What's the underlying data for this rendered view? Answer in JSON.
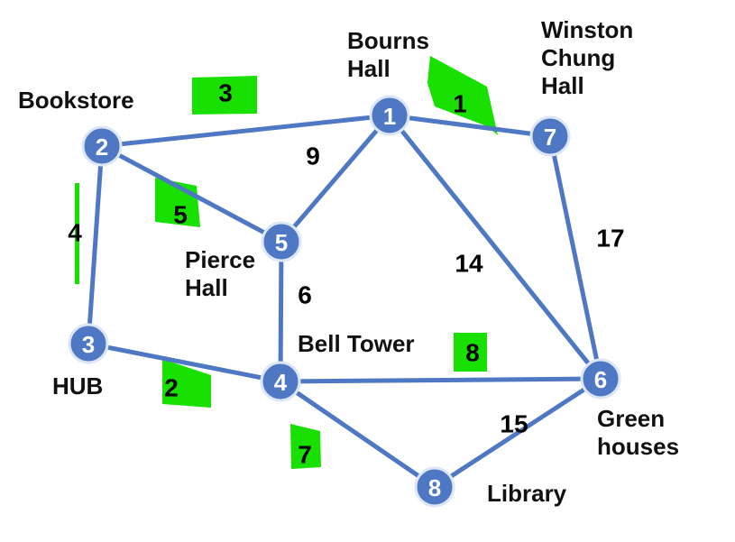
{
  "colors": {
    "edge": "#4f78c4",
    "node": "#4f78c4",
    "highlight": "#18e000",
    "text": "#111111"
  },
  "nodes": [
    {
      "id": "1",
      "place": [
        "Bourns",
        "Hall"
      ]
    },
    {
      "id": "2",
      "place": [
        "Bookstore"
      ]
    },
    {
      "id": "3",
      "place": [
        "HUB"
      ]
    },
    {
      "id": "4",
      "place": [
        "Bell Tower"
      ]
    },
    {
      "id": "5",
      "place": [
        "Pierce",
        "Hall"
      ]
    },
    {
      "id": "6",
      "place": [
        "Green",
        "houses"
      ]
    },
    {
      "id": "7",
      "place": [
        "Winston",
        "Chung",
        "Hall"
      ]
    },
    {
      "id": "8",
      "place": [
        "Library"
      ]
    }
  ],
  "edges": [
    {
      "from": "2",
      "to": "1",
      "weight": "3",
      "highlighted": true
    },
    {
      "from": "1",
      "to": "7",
      "weight": "1",
      "highlighted": true
    },
    {
      "from": "1",
      "to": "5",
      "weight": "9",
      "highlighted": false
    },
    {
      "from": "1",
      "to": "6",
      "weight": "14",
      "highlighted": false
    },
    {
      "from": "7",
      "to": "6",
      "weight": "17",
      "highlighted": false
    },
    {
      "from": "2",
      "to": "5",
      "weight": "5",
      "highlighted": true
    },
    {
      "from": "2",
      "to": "3",
      "weight": "4",
      "highlighted": true
    },
    {
      "from": "5",
      "to": "4",
      "weight": "6",
      "highlighted": false
    },
    {
      "from": "3",
      "to": "4",
      "weight": "2",
      "highlighted": true
    },
    {
      "from": "4",
      "to": "6",
      "weight": "8",
      "highlighted": true
    },
    {
      "from": "4",
      "to": "8",
      "weight": "7",
      "highlighted": true
    },
    {
      "from": "8",
      "to": "6",
      "weight": "15",
      "highlighted": false
    }
  ]
}
